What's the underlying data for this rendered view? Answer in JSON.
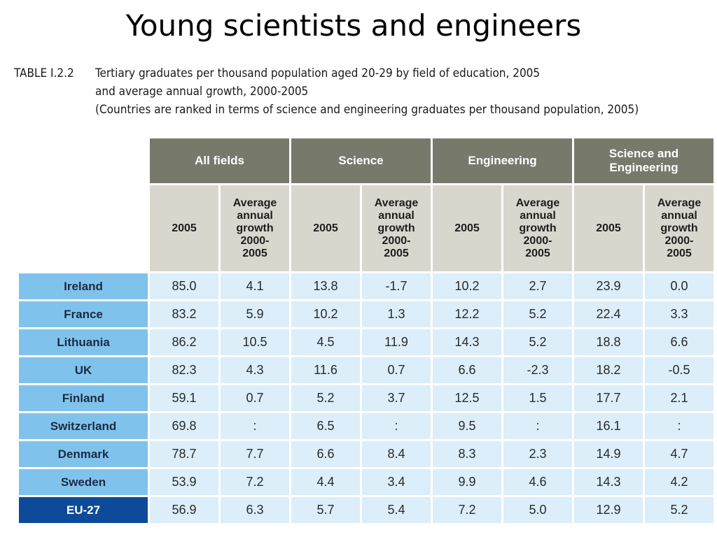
{
  "slide": {
    "title": "Young scientists and engineers"
  },
  "caption": {
    "label": "TABLE I.2.2",
    "lines": [
      "Tertiary graduates per thousand population aged 20-29 by field of education, 2005",
      "and average annual growth, 2000-2005",
      "(Countries are ranked in terms of science and engineering graduates per thousand population, 2005)"
    ]
  },
  "table": {
    "groups": [
      "All fields",
      "Science",
      "Engineering",
      "Science and Engineering"
    ],
    "subheaders": [
      "2005",
      "Average annual growth 2000-2005"
    ],
    "rows": [
      {
        "country": "Ireland",
        "values": [
          "85.0",
          "4.1",
          "13.8",
          "-1.7",
          "10.2",
          "2.7",
          "23.9",
          "0.0"
        ]
      },
      {
        "country": "France",
        "values": [
          "83.2",
          "5.9",
          "10.2",
          "1.3",
          "12.2",
          "5.2",
          "22.4",
          "3.3"
        ]
      },
      {
        "country": "Lithuania",
        "values": [
          "86.2",
          "10.5",
          "4.5",
          "11.9",
          "14.3",
          "5.2",
          "18.8",
          "6.6"
        ]
      },
      {
        "country": "UK",
        "values": [
          "82.3",
          "4.3",
          "11.6",
          "0.7",
          "6.6",
          "-2.3",
          "18.2",
          "-0.5"
        ]
      },
      {
        "country": "Finland",
        "values": [
          "59.1",
          "0.7",
          "5.2",
          "3.7",
          "12.5",
          "1.5",
          "17.7",
          "2.1"
        ]
      },
      {
        "country": "Switzerland",
        "values": [
          "69.8",
          ":",
          "6.5",
          ":",
          "9.5",
          ":",
          "16.1",
          ":"
        ]
      },
      {
        "country": "Denmark",
        "values": [
          "78.7",
          "7.7",
          "6.6",
          "8.4",
          "8.3",
          "2.3",
          "14.9",
          "4.7"
        ]
      },
      {
        "country": "Sweden",
        "values": [
          "53.9",
          "7.2",
          "4.4",
          "3.4",
          "9.9",
          "4.6",
          "14.3",
          "4.2"
        ]
      },
      {
        "country": "EU-27",
        "values": [
          "56.9",
          "6.3",
          "5.7",
          "5.4",
          "7.2",
          "5.0",
          "12.9",
          "5.2"
        ]
      }
    ]
  },
  "colors": {
    "group_header": "#777a6b",
    "sub_header": "#d9d6cd",
    "country_cell": "#7fc3ed",
    "eu_cell": "#0d4a9a",
    "value_cell": "#dbeef9"
  }
}
